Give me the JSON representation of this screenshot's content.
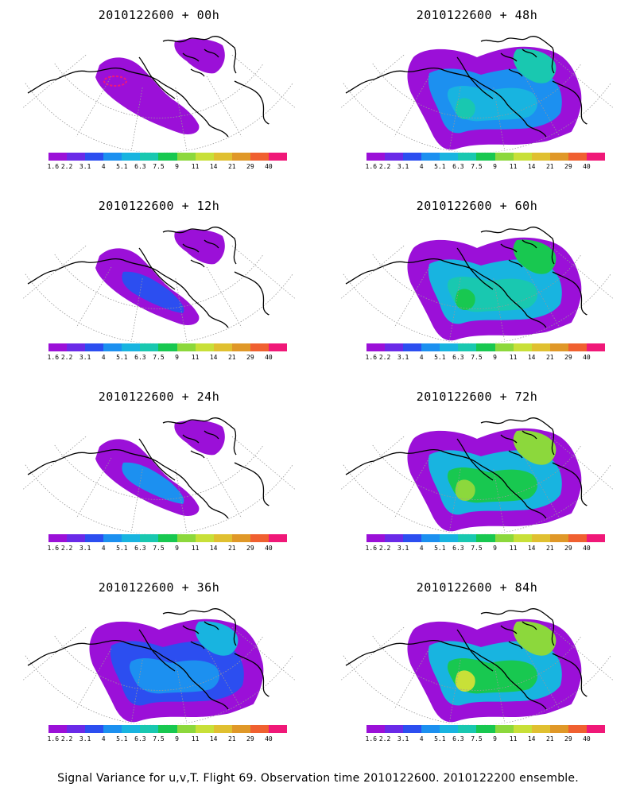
{
  "panels": [
    {
      "title": "2010122600 + 00h",
      "level": 0
    },
    {
      "title": "2010122600 + 48h",
      "level": 5
    },
    {
      "title": "2010122600 + 12h",
      "level": 1
    },
    {
      "title": "2010122600 + 60h",
      "level": 6
    },
    {
      "title": "2010122600 + 24h",
      "level": 2
    },
    {
      "title": "2010122600 + 72h",
      "level": 7
    },
    {
      "title": "2010122600 + 36h",
      "level": 4
    },
    {
      "title": "2010122600 + 84h",
      "level": 8
    }
  ],
  "colorbar": {
    "labels": [
      "1.6",
      "2.2",
      "3.1",
      "4",
      "5.1",
      "6.3",
      "7.5",
      "9",
      "11",
      "14",
      "21",
      "29",
      "40"
    ],
    "colors": [
      "#9b10d8",
      "#6a2ae8",
      "#2c4ef0",
      "#1c90f0",
      "#18b4e0",
      "#19c8b0",
      "#18c850",
      "#8cd83c",
      "#c8e038",
      "#e0c030",
      "#e09828",
      "#f06030",
      "#f01878"
    ]
  },
  "caption": "Signal Variance for u,v,T. Flight 69. Observation time 2010122600. 2010122200 ensemble."
}
